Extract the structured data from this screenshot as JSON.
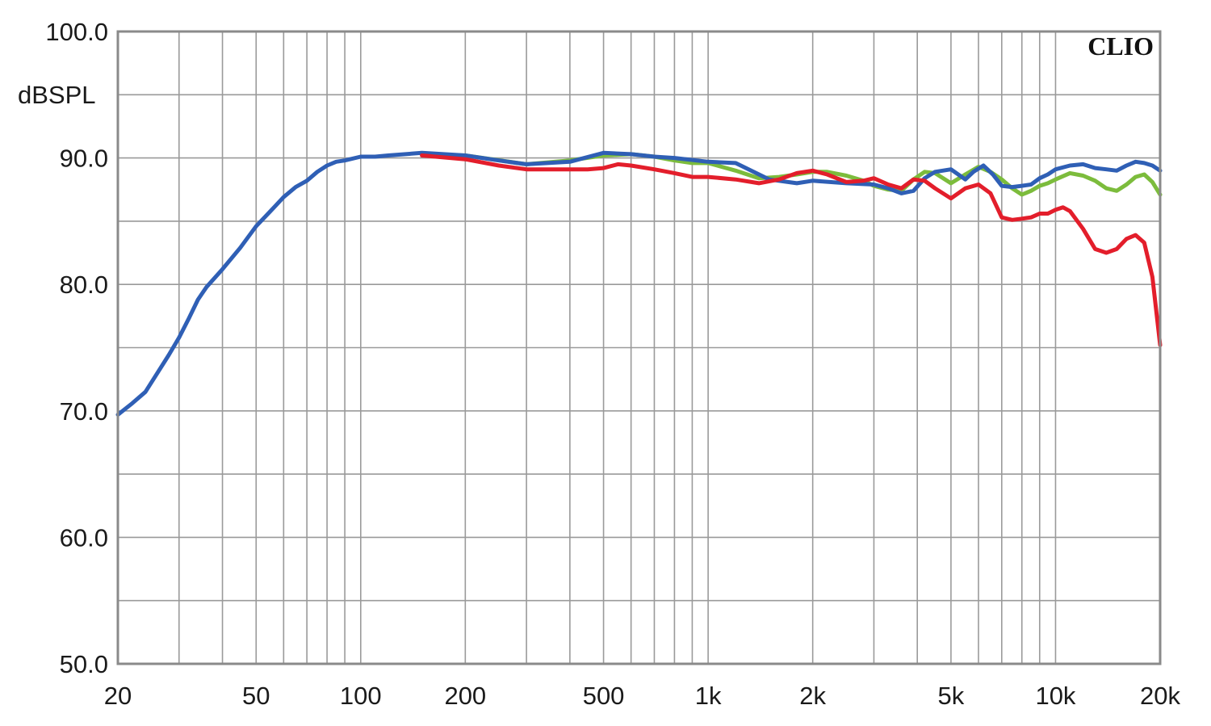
{
  "chart_data": {
    "type": "line",
    "x_scale": "log",
    "xlim": [
      20,
      20000
    ],
    "ylim": [
      50,
      100
    ],
    "grid": true,
    "brand": "CLIO",
    "ylabel": "dBSPL",
    "x_ticks": [
      {
        "value": 20,
        "label": "20"
      },
      {
        "value": 50,
        "label": "50"
      },
      {
        "value": 100,
        "label": "100"
      },
      {
        "value": 200,
        "label": "200"
      },
      {
        "value": 500,
        "label": "500"
      },
      {
        "value": 1000,
        "label": "1k"
      },
      {
        "value": 2000,
        "label": "2k"
      },
      {
        "value": 5000,
        "label": "5k"
      },
      {
        "value": 10000,
        "label": "10k"
      },
      {
        "value": 20000,
        "label": "20k"
      }
    ],
    "y_ticks": [
      {
        "value": 100,
        "label": "100.0"
      },
      {
        "value": 90,
        "label": "90.0"
      },
      {
        "value": 80,
        "label": "80.0"
      },
      {
        "value": 70,
        "label": "70.0"
      },
      {
        "value": 60,
        "label": "60.0"
      },
      {
        "value": 50,
        "label": "50.0"
      }
    ],
    "y_grid_step": 5,
    "series": [
      {
        "color": "#7cbc3c",
        "x": [
          150,
          200,
          300,
          400,
          500,
          600,
          700,
          800,
          900,
          1000,
          1200,
          1400,
          1600,
          1800,
          2000,
          2200,
          2500,
          2800,
          3000,
          3300,
          3600,
          3900,
          4200,
          4500,
          5000,
          5500,
          6000,
          6500,
          7000,
          7500,
          8000,
          8500,
          9000,
          9500,
          10000,
          11000,
          12000,
          13000,
          14000,
          15000,
          16000,
          17000,
          18000,
          19000,
          20000
        ],
        "y": [
          90.3,
          90.2,
          89.5,
          89.8,
          90.2,
          90.3,
          90.1,
          89.8,
          89.6,
          89.6,
          89.0,
          88.4,
          88.5,
          88.7,
          88.9,
          88.9,
          88.6,
          88.2,
          87.8,
          87.5,
          87.4,
          88.3,
          88.9,
          88.8,
          88.0,
          88.7,
          89.3,
          88.9,
          88.3,
          87.6,
          87.1,
          87.4,
          87.8,
          88.0,
          88.3,
          88.8,
          88.6,
          88.2,
          87.6,
          87.4,
          87.9,
          88.5,
          88.7,
          88.1,
          87.1
        ]
      },
      {
        "color": "#2f5fb5",
        "x": [
          20,
          22,
          24,
          26,
          28,
          30,
          32,
          34,
          36,
          40,
          45,
          50,
          55,
          60,
          65,
          70,
          75,
          80,
          85,
          90,
          100,
          110,
          120,
          150,
          200,
          250,
          300,
          400,
          500,
          600,
          700,
          800,
          1000,
          1200,
          1500,
          1800,
          2000,
          2500,
          3000,
          3300,
          3600,
          3900,
          4200,
          4500,
          5000,
          5500,
          5800,
          6200,
          6600,
          7000,
          7500,
          8000,
          8500,
          9000,
          9500,
          10000,
          11000,
          12000,
          13000,
          14000,
          15000,
          16000,
          17000,
          18000,
          19000,
          20000
        ],
        "y": [
          69.7,
          70.6,
          71.5,
          73.0,
          74.4,
          75.8,
          77.3,
          78.8,
          79.8,
          81.2,
          82.9,
          84.6,
          85.8,
          86.9,
          87.7,
          88.2,
          88.9,
          89.4,
          89.7,
          89.8,
          90.1,
          90.1,
          90.2,
          90.4,
          90.2,
          89.8,
          89.5,
          89.7,
          90.4,
          90.3,
          90.1,
          90.0,
          89.7,
          89.6,
          88.3,
          88.0,
          88.2,
          88.0,
          87.9,
          87.6,
          87.2,
          87.4,
          88.4,
          88.9,
          89.1,
          88.3,
          88.9,
          89.4,
          88.7,
          87.8,
          87.7,
          87.8,
          87.9,
          88.4,
          88.7,
          89.1,
          89.4,
          89.5,
          89.2,
          89.1,
          89.0,
          89.4,
          89.7,
          89.6,
          89.4,
          89.0
        ]
      },
      {
        "color": "#e31e2b",
        "x": [
          150,
          200,
          250,
          300,
          350,
          400,
          450,
          500,
          550,
          600,
          700,
          800,
          900,
          1000,
          1200,
          1400,
          1600,
          1800,
          2000,
          2200,
          2500,
          2800,
          3000,
          3300,
          3600,
          3900,
          4200,
          4500,
          5000,
          5500,
          6000,
          6500,
          7000,
          7500,
          8000,
          8500,
          9000,
          9500,
          10000,
          10500,
          11000,
          12000,
          13000,
          14000,
          15000,
          16000,
          17000,
          18000,
          19000,
          20000
        ],
        "y": [
          90.2,
          89.9,
          89.4,
          89.1,
          89.1,
          89.1,
          89.1,
          89.2,
          89.5,
          89.4,
          89.1,
          88.8,
          88.5,
          88.5,
          88.3,
          88.0,
          88.3,
          88.8,
          89.0,
          88.7,
          88.1,
          88.2,
          88.4,
          87.9,
          87.6,
          88.3,
          88.2,
          87.6,
          86.8,
          87.6,
          87.9,
          87.2,
          85.3,
          85.1,
          85.2,
          85.3,
          85.6,
          85.6,
          85.9,
          86.1,
          85.8,
          84.4,
          82.8,
          82.5,
          82.8,
          83.6,
          83.9,
          83.3,
          80.6,
          75.2
        ]
      }
    ]
  }
}
